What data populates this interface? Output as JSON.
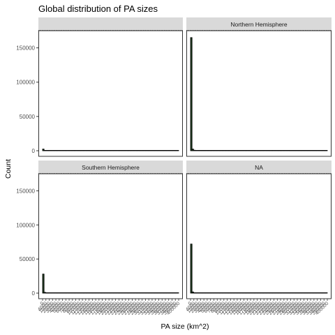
{
  "chart_data": {
    "type": "bar",
    "title": "Global distribution of PA sizes",
    "xlabel": "PA size (km^2)",
    "ylabel": "Count",
    "ylim": [
      0,
      175000
    ],
    "y_ticks": [
      0,
      50000,
      100000,
      150000
    ],
    "y_tick_labels": [
      "0",
      "50000",
      "100000",
      "150000"
    ],
    "x_tick_labels": [
      "0",
      "4000",
      "10000",
      "20000",
      "30000",
      "40000",
      "50000",
      "60000",
      "70000",
      "80000",
      "90000",
      "100000",
      "110000",
      "120000",
      "130000",
      "140000",
      "150000",
      "160000",
      "170000",
      "180000",
      "190000",
      "200000",
      "210000",
      "220000",
      "230000",
      "240000",
      "250000",
      "260000",
      "270000",
      "280000",
      "290000",
      "300000",
      "310000",
      "320000",
      "330000",
      "340000",
      "350000",
      "360000",
      "370000",
      "380000",
      "390000",
      "400000"
    ],
    "bar_fill": "#1f3d1f",
    "bar_stroke": "#000000",
    "panels": [
      {
        "strip": "",
        "values": [
          2500,
          400,
          100,
          50,
          20,
          10,
          5,
          0,
          0,
          0,
          0,
          0,
          0,
          0,
          0,
          0,
          0,
          0,
          0,
          0,
          0,
          0,
          0,
          0,
          0,
          0,
          0,
          0,
          0,
          0,
          0,
          0,
          0,
          0,
          0,
          0,
          0,
          0,
          0,
          0,
          0,
          0,
          0,
          0,
          0,
          0,
          0,
          0,
          0,
          0,
          0,
          0,
          0,
          0,
          0,
          0,
          0,
          0,
          0,
          0,
          0,
          0,
          0,
          0,
          0,
          0,
          0,
          0,
          0,
          0,
          0,
          0,
          0,
          0,
          0,
          0,
          0,
          0,
          0,
          0,
          0,
          0,
          0,
          0,
          0,
          0,
          0,
          0,
          0,
          0
        ]
      },
      {
        "strip": "Northern Hemisphere",
        "values": [
          165000,
          2500,
          800,
          300,
          150,
          80,
          40,
          20,
          10,
          5,
          0,
          0,
          0,
          0,
          0,
          0,
          0,
          0,
          0,
          0,
          0,
          0,
          0,
          0,
          0,
          0,
          0,
          0,
          0,
          0,
          0,
          0,
          0,
          0,
          0,
          0,
          0,
          0,
          0,
          0,
          0,
          0,
          0,
          0,
          0,
          0,
          0,
          0,
          0,
          0,
          0,
          0,
          0,
          0,
          0,
          0,
          0,
          0,
          0,
          0,
          0,
          0,
          0,
          0,
          0,
          0,
          0,
          0,
          0,
          0,
          0,
          0,
          0,
          0,
          0,
          0,
          0,
          0,
          0,
          0,
          0,
          0,
          0,
          0,
          0,
          0,
          0,
          0,
          0,
          0
        ]
      },
      {
        "strip": "Southern Hemisphere",
        "values": [
          28000,
          1200,
          400,
          150,
          60,
          30,
          15,
          8,
          4,
          2,
          0,
          0,
          0,
          0,
          0,
          0,
          0,
          0,
          0,
          0,
          0,
          0,
          0,
          0,
          0,
          0,
          0,
          0,
          0,
          0,
          0,
          0,
          0,
          0,
          0,
          0,
          0,
          0,
          0,
          0,
          0,
          0,
          0,
          0,
          0,
          0,
          0,
          0,
          0,
          0,
          0,
          0,
          0,
          0,
          0,
          0,
          0,
          0,
          0,
          0,
          0,
          0,
          0,
          0,
          0,
          0,
          0,
          0,
          0,
          0,
          0,
          0,
          0,
          0,
          0,
          0,
          0,
          0,
          0,
          0,
          0,
          0,
          0,
          0,
          0,
          0,
          0,
          0,
          0,
          0
        ]
      },
      {
        "strip": "NA",
        "values": [
          72000,
          1800,
          500,
          200,
          90,
          40,
          20,
          10,
          5,
          2,
          0,
          0,
          0,
          0,
          0,
          0,
          0,
          0,
          0,
          0,
          0,
          0,
          0,
          0,
          0,
          0,
          0,
          0,
          0,
          0,
          0,
          0,
          0,
          0,
          0,
          0,
          0,
          0,
          0,
          0,
          0,
          0,
          0,
          0,
          0,
          0,
          0,
          0,
          0,
          0,
          0,
          0,
          0,
          0,
          0,
          0,
          0,
          0,
          0,
          0,
          0,
          0,
          0,
          0,
          0,
          0,
          0,
          0,
          0,
          0,
          0,
          0,
          0,
          0,
          0,
          0,
          0,
          0,
          0,
          0,
          0,
          0,
          0,
          0,
          0,
          0,
          0,
          0,
          0,
          0
        ]
      }
    ]
  }
}
